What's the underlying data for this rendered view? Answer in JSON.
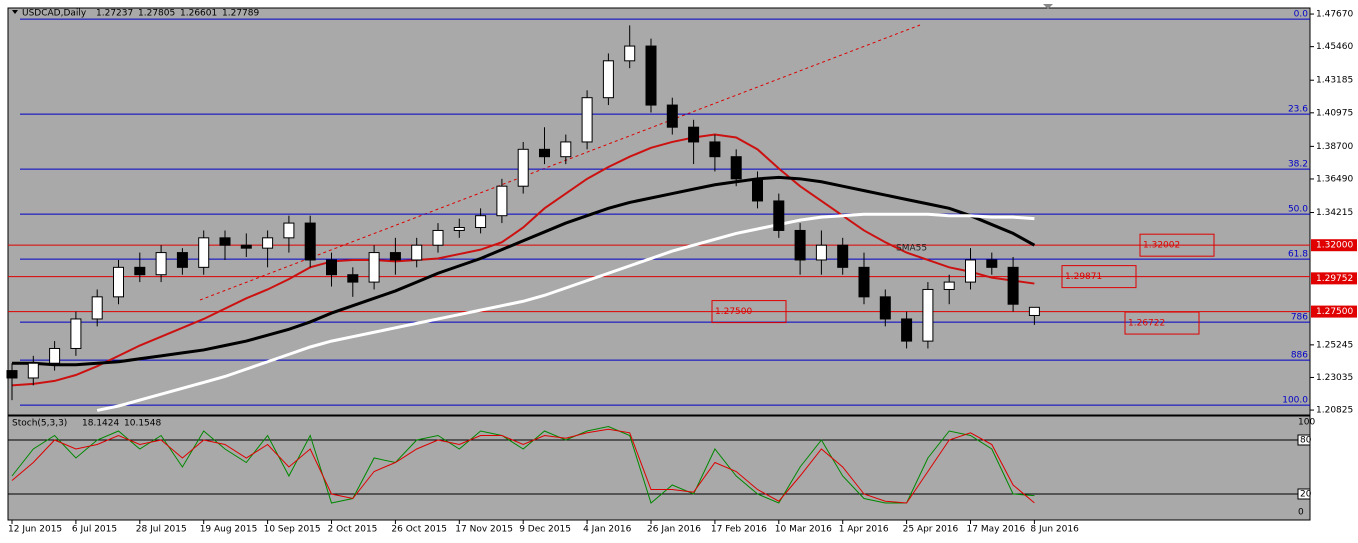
{
  "chart_data": {
    "type": "candlestick",
    "symbol": "USDCAD,Daily",
    "categories": [
      "12 Jun 2015",
      null,
      null,
      "6 Jul 2015",
      null,
      null,
      "28 Jul 2015",
      null,
      null,
      "19 Aug 2015",
      null,
      null,
      "10 Sep 2015",
      null,
      null,
      "2 Oct 2015",
      null,
      null,
      "26 Oct 2015",
      null,
      null,
      "17 Nov 2015",
      null,
      null,
      "9 Dec 2015",
      null,
      null,
      "4 Jan 2016",
      null,
      null,
      "26 Jan 2016",
      null,
      null,
      "17 Feb 2016",
      null,
      null,
      "10 Mar 2016",
      null,
      null,
      "1 Apr 2016",
      null,
      null,
      "25 Apr 2016",
      null,
      null,
      "17 May 2016",
      null,
      null,
      "8 Jun 2016"
    ],
    "open": [
      1.235,
      1.23,
      1.24,
      1.25,
      1.27,
      1.285,
      1.305,
      1.3,
      1.315,
      1.305,
      1.325,
      1.32,
      1.318,
      1.325,
      1.335,
      1.31,
      1.3,
      1.295,
      1.315,
      1.31,
      1.32,
      1.33,
      1.332,
      1.34,
      1.36,
      1.385,
      1.38,
      1.39,
      1.42,
      1.445,
      1.455,
      1.415,
      1.4,
      1.39,
      1.38,
      1.365,
      1.35,
      1.33,
      1.31,
      1.32,
      1.305,
      1.285,
      1.27,
      1.255,
      1.29,
      1.295,
      1.31,
      1.305,
      1.27237
    ],
    "high": [
      1.24,
      1.245,
      1.255,
      1.275,
      1.29,
      1.31,
      1.315,
      1.32,
      1.318,
      1.33,
      1.33,
      1.328,
      1.33,
      1.34,
      1.34,
      1.315,
      1.305,
      1.32,
      1.325,
      1.325,
      1.335,
      1.338,
      1.345,
      1.365,
      1.39,
      1.4,
      1.395,
      1.425,
      1.45,
      1.469,
      1.46,
      1.42,
      1.405,
      1.395,
      1.385,
      1.37,
      1.355,
      1.335,
      1.33,
      1.325,
      1.315,
      1.29,
      1.275,
      1.295,
      1.3,
      1.318,
      1.315,
      1.312,
      1.27805
    ],
    "low": [
      1.215,
      1.225,
      1.235,
      1.245,
      1.265,
      1.28,
      1.295,
      1.295,
      1.3,
      1.3,
      1.31,
      1.312,
      1.305,
      1.315,
      1.305,
      1.292,
      1.285,
      1.29,
      1.3,
      1.305,
      1.315,
      1.325,
      1.328,
      1.335,
      1.355,
      1.375,
      1.375,
      1.385,
      1.415,
      1.44,
      1.41,
      1.395,
      1.375,
      1.37,
      1.36,
      1.345,
      1.325,
      1.3,
      1.3,
      1.3,
      1.28,
      1.265,
      1.25,
      1.25,
      1.28,
      1.29,
      1.3,
      1.275,
      1.26601
    ],
    "close": [
      1.23,
      1.24,
      1.25,
      1.27,
      1.285,
      1.305,
      1.3,
      1.315,
      1.305,
      1.325,
      1.32,
      1.318,
      1.325,
      1.335,
      1.31,
      1.3,
      1.295,
      1.315,
      1.31,
      1.32,
      1.33,
      1.332,
      1.34,
      1.36,
      1.385,
      1.38,
      1.39,
      1.42,
      1.445,
      1.455,
      1.415,
      1.4,
      1.39,
      1.38,
      1.365,
      1.35,
      1.33,
      1.31,
      1.32,
      1.305,
      1.285,
      1.27,
      1.255,
      1.29,
      1.295,
      1.31,
      1.305,
      1.28,
      1.27789
    ],
    "ylim": [
      1.2049,
      1.4808
    ],
    "yticks": [
      {
        "value": 1.4767,
        "label": "1.47670"
      },
      {
        "value": 1.4546,
        "label": "1.45460"
      },
      1.43185,
      1.40975,
      {
        "value": 1.387,
        "label": "1.38700"
      },
      {
        "value": 1.3649,
        "label": "1.36490"
      },
      1.34215,
      1.25245,
      1.23035,
      1.20825
    ],
    "axis_marks": [
      {
        "value": 1.32,
        "label": "1.32000"
      },
      1.29752,
      {
        "value": 1.275,
        "label": "1.27500"
      }
    ],
    "moving_averages": [
      {
        "color": "#cc1111",
        "values": [
          1.225,
          1.226,
          1.228,
          1.232,
          1.238,
          1.245,
          1.252,
          1.258,
          1.264,
          1.27,
          1.277,
          1.284,
          1.29,
          1.297,
          1.305,
          1.309,
          1.31,
          1.31,
          1.309,
          1.31,
          1.311,
          1.314,
          1.317,
          1.322,
          1.332,
          1.345,
          1.355,
          1.365,
          1.373,
          1.38,
          1.386,
          1.39,
          1.393,
          1.395,
          1.393,
          1.385,
          1.372,
          1.36,
          1.35,
          1.34,
          1.33,
          1.322,
          1.315,
          1.31,
          1.305,
          1.302,
          1.298,
          1.296,
          1.294
        ]
      },
      {
        "color": "#000000",
        "values": [
          1.24,
          1.24,
          1.239,
          1.239,
          1.24,
          1.241,
          1.243,
          1.245,
          1.247,
          1.249,
          1.252,
          1.255,
          1.259,
          1.263,
          1.268,
          1.274,
          1.279,
          1.284,
          1.289,
          1.295,
          1.301,
          1.306,
          1.311,
          1.317,
          1.323,
          1.329,
          1.335,
          1.34,
          1.345,
          1.349,
          1.352,
          1.355,
          1.358,
          1.361,
          1.363,
          1.365,
          1.366,
          1.365,
          1.363,
          1.36,
          1.357,
          1.354,
          1.351,
          1.348,
          1.345,
          1.34,
          1.334,
          1.328,
          1.32
        ]
      },
      {
        "color": "#ffffff",
        "values": [
          null,
          null,
          null,
          null,
          1.208,
          1.211,
          1.215,
          1.219,
          1.223,
          1.227,
          1.231,
          1.236,
          1.241,
          1.246,
          1.251,
          1.255,
          1.258,
          1.261,
          1.264,
          1.267,
          1.27,
          1.273,
          1.276,
          1.279,
          1.282,
          1.286,
          1.291,
          1.296,
          1.301,
          1.306,
          1.311,
          1.316,
          1.32,
          1.324,
          1.328,
          1.331,
          1.334,
          1.337,
          1.339,
          1.34,
          1.341,
          1.341,
          1.341,
          1.341,
          1.34,
          1.34,
          1.339,
          1.339,
          1.338
        ]
      }
    ],
    "annotation": "SMA55",
    "fib_levels": [
      {
        "label": "0.0",
        "value": 1.4733
      },
      {
        "label": "23.6",
        "value": 1.4089
      },
      {
        "label": "38.2",
        "value": 1.3716
      },
      {
        "label": "50.0",
        "value": 1.3411
      },
      {
        "label": "61.8",
        "value": 1.3106
      },
      {
        "label": "786",
        "value": 1.2679
      },
      {
        "label": "886",
        "value": 1.2421
      },
      {
        "label": "100.0",
        "value": 1.2116
      }
    ],
    "price_labels": [
      {
        "value": 1.32002,
        "line": true
      },
      {
        "value": 1.29871,
        "line": true
      },
      {
        "value": 1.275,
        "label": "1.27500",
        "line": true
      },
      {
        "value": 1.26722,
        "line": false
      }
    ],
    "stochastic": {
      "name": "Stoch(5,3,3)",
      "ylim": [
        0,
        100
      ],
      "yticks": [
        100,
        80,
        20,
        0
      ],
      "series": [
        {
          "color": "#008800",
          "values": [
            40,
            70,
            85,
            60,
            80,
            90,
            70,
            85,
            50,
            90,
            70,
            55,
            85,
            40,
            85,
            10,
            15,
            60,
            55,
            80,
            85,
            70,
            90,
            85,
            70,
            90,
            80,
            90,
            95,
            85,
            10,
            30,
            20,
            70,
            40,
            20,
            10,
            50,
            80,
            40,
            15,
            10,
            10,
            60,
            90,
            85,
            70,
            20,
            18.1424
          ]
        },
        {
          "color": "#dd0000",
          "values": [
            35,
            55,
            80,
            70,
            75,
            85,
            75,
            80,
            60,
            80,
            75,
            60,
            75,
            50,
            70,
            20,
            15,
            45,
            55,
            70,
            80,
            75,
            85,
            85,
            75,
            85,
            82,
            88,
            92,
            88,
            25,
            25,
            22,
            55,
            45,
            25,
            12,
            40,
            70,
            50,
            20,
            12,
            10,
            45,
            80,
            88,
            75,
            30,
            10.1548
          ]
        }
      ]
    }
  }
}
